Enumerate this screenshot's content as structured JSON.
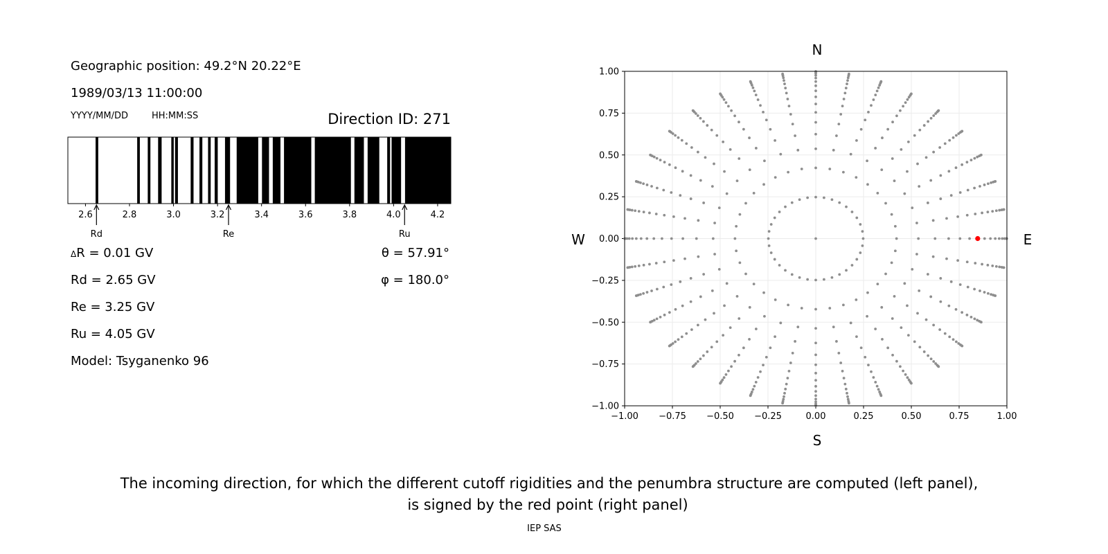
{
  "left_panel": {
    "position": "Geographic position: 49.2°N 20.22°E",
    "datetime": "1989/03/13 11:00:00",
    "date_format": "YYYY/MM/DD",
    "time_format": "HH:MM:SS",
    "direction_id": "Direction ID: 271",
    "params": {
      "delta_r": "R = 0.01 GV",
      "delta_symbol": "Δ",
      "rd": "Rd = 2.65 GV",
      "re": "Re = 3.25 GV",
      "ru": "Ru = 4.05 GV",
      "model": "Model: Tsyganenko 96",
      "theta": "θ = 57.91°",
      "phi": "φ = 180.0°"
    }
  },
  "chart_data": [
    {
      "type": "penumbra-bar",
      "xlim": [
        2.52,
        4.26
      ],
      "xticks": [
        2.6,
        2.8,
        3.0,
        3.2,
        3.4,
        3.6,
        3.8,
        4.0,
        4.2
      ],
      "xtick_labels": [
        "2.6",
        "2.8",
        "3.0",
        "3.2",
        "3.4",
        "3.6",
        "3.8",
        "4.0",
        "4.2"
      ],
      "forbidden_intervals_gv": [
        [
          2.646,
          2.658
        ],
        [
          2.835,
          2.847
        ],
        [
          2.883,
          2.895
        ],
        [
          2.93,
          2.946
        ],
        [
          2.99,
          3.001
        ],
        [
          3.007,
          3.02
        ],
        [
          3.078,
          3.091
        ],
        [
          3.118,
          3.131
        ],
        [
          3.157,
          3.169
        ],
        [
          3.187,
          3.201
        ],
        [
          3.234,
          3.257
        ],
        [
          3.287,
          3.385
        ],
        [
          3.402,
          3.434
        ],
        [
          3.451,
          3.486
        ],
        [
          3.502,
          3.626
        ],
        [
          3.642,
          3.806
        ],
        [
          3.822,
          3.865
        ],
        [
          3.882,
          3.935
        ],
        [
          3.971,
          3.984
        ],
        [
          3.991,
          4.034
        ],
        [
          4.052,
          4.26
        ]
      ],
      "markers": [
        {
          "label": "Rd",
          "value": 2.65
        },
        {
          "label": "Re",
          "value": 3.25
        },
        {
          "label": "Ru",
          "value": 4.05
        }
      ],
      "colors": {
        "forbidden": "#000000",
        "allowed": "#ffffff"
      }
    },
    {
      "type": "scatter",
      "xlim": [
        -1,
        1
      ],
      "ylim": [
        -1,
        1
      ],
      "grid": true,
      "ticks": [
        -1,
        -0.75,
        -0.5,
        -0.25,
        0,
        0.25,
        0.5,
        0.75,
        1
      ],
      "tick_labels": [
        "−1.00",
        "−0.75",
        "−0.50",
        "−0.25",
        "0.00",
        "0.25",
        "0.50",
        "0.75",
        "1.00"
      ],
      "compass": {
        "north": "N",
        "south": "S",
        "west": "W",
        "east": "E"
      },
      "azimuths_deg": [
        0,
        10,
        20,
        30,
        40,
        50,
        60,
        70,
        80,
        90,
        100,
        110,
        120,
        130,
        140,
        150,
        160,
        170,
        180,
        190,
        200,
        210,
        220,
        230,
        240,
        250,
        260,
        270,
        280,
        290,
        300,
        310,
        320,
        330,
        340,
        350
      ],
      "zenith_deg": [
        14.36,
        25.0,
        32.47,
        38.62,
        44.05,
        48.99,
        53.58,
        57.91,
        62.05,
        66.03,
        69.89,
        73.67,
        77.36,
        81.01,
        84.62,
        88.21
      ],
      "center_point": true,
      "selected": {
        "theta_deg": 57.91,
        "phi_deg": 180.0
      },
      "colors": {
        "points": "#8e8e8e",
        "selected": "#ff0000"
      }
    }
  ],
  "caption": {
    "line1": "The incoming direction, for which the different cutoff rigidities and the penumbra structure are computed (left panel),",
    "line2": "is signed by the red point (right panel)"
  },
  "footer": "IEP SAS"
}
